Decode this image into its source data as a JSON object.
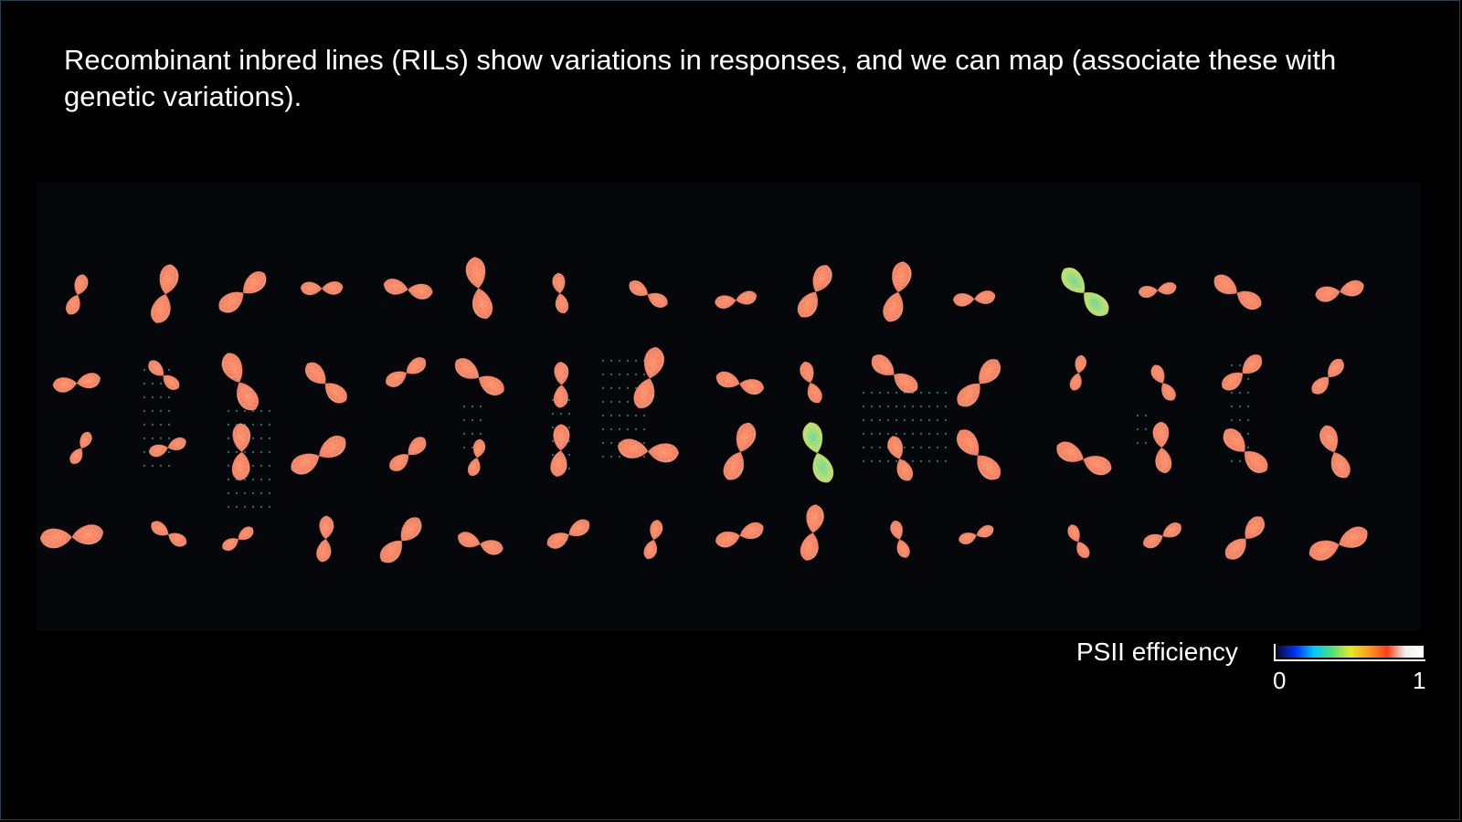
{
  "slide": {
    "caption": "Recombinant inbred lines (RILs) show variations in responses, and we can map (associate these with genetic variations)."
  },
  "image": {
    "subject": "chlorophyll fluorescence images of seedlings, colour-coded by PSII efficiency",
    "grid_rows": 4,
    "grid_cols": 16
  },
  "legend": {
    "label": "PSII efficiency",
    "min_label": "0",
    "max_label": "1",
    "colormap": [
      "#0a0a3a",
      "#0033ff",
      "#00c8ff",
      "#4be07a",
      "#e8e82a",
      "#ff9b1a",
      "#ff3d1a",
      "#f0f0f0",
      "#ffffff"
    ]
  },
  "colors": {
    "background": "#000000",
    "typical_plant": "#f06a32",
    "low_efficiency_plant": "#8fd84a"
  }
}
